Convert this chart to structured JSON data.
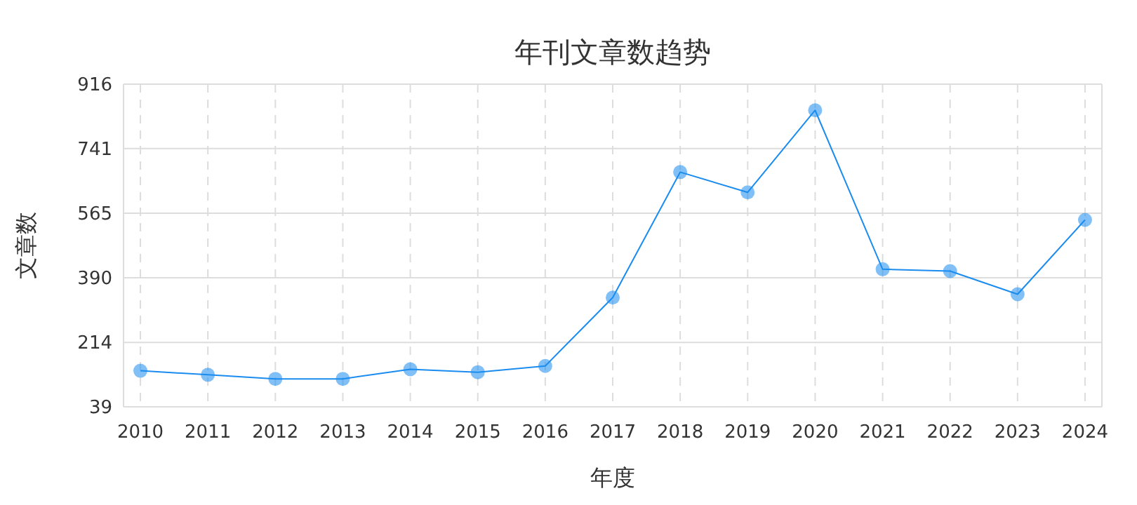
{
  "chart_data": {
    "type": "line",
    "title": "年刊文章数趋势",
    "xlabel": "年度",
    "ylabel": "文章数",
    "categories": [
      "2010",
      "2011",
      "2012",
      "2013",
      "2014",
      "2015",
      "2016",
      "2017",
      "2018",
      "2019",
      "2020",
      "2021",
      "2022",
      "2023",
      "2024"
    ],
    "series": [
      {
        "color": "#1a8cf0",
        "values": [
          137,
          126,
          115,
          115,
          141,
          133,
          150,
          336,
          677,
          622,
          845,
          413,
          408,
          345,
          547
        ]
      }
    ],
    "ylim": [
      39,
      916
    ],
    "yticks": [
      39,
      214,
      390,
      565,
      741,
      916
    ],
    "grid": true,
    "marker": "circle",
    "line_style": "solid"
  }
}
